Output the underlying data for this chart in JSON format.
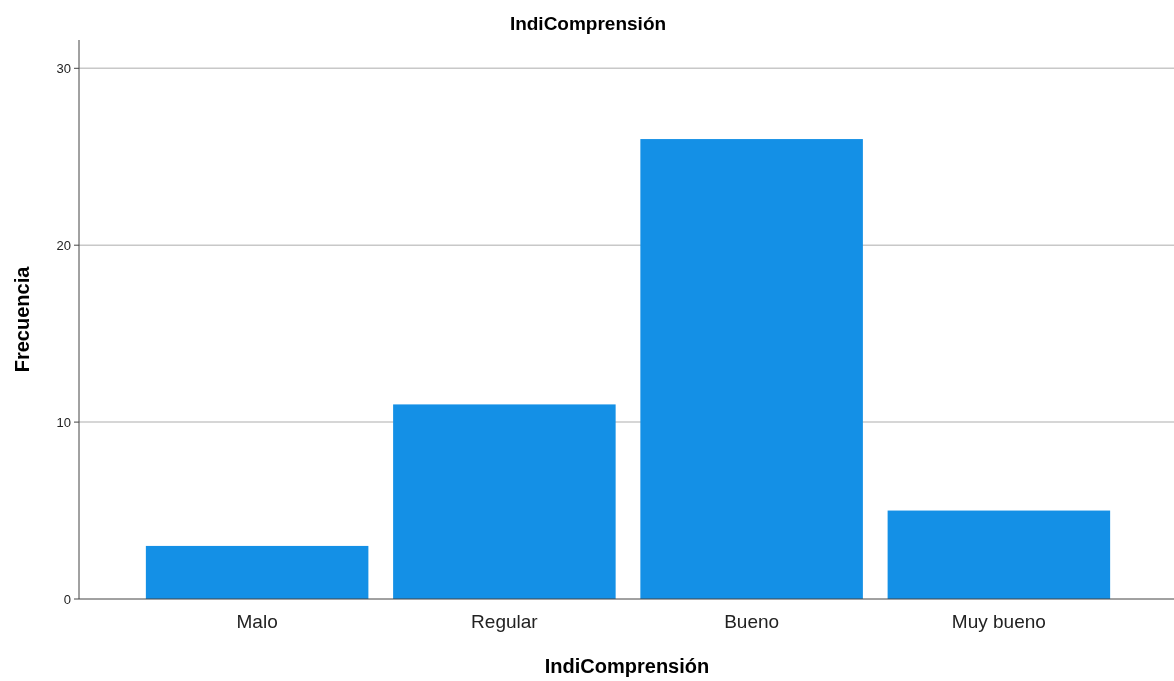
{
  "chart_data": {
    "type": "bar",
    "title": "IndiComprensión",
    "xlabel": "IndiComprensión",
    "ylabel": "Frecuencia",
    "categories": [
      "Malo",
      "Regular",
      "Bueno",
      "Muy bueno"
    ],
    "values": [
      3,
      11,
      26,
      5
    ],
    "color": "#1490e6",
    "ylim": [
      0,
      31.6
    ],
    "yticks": [
      0,
      10,
      20,
      30
    ],
    "grid": "y"
  }
}
